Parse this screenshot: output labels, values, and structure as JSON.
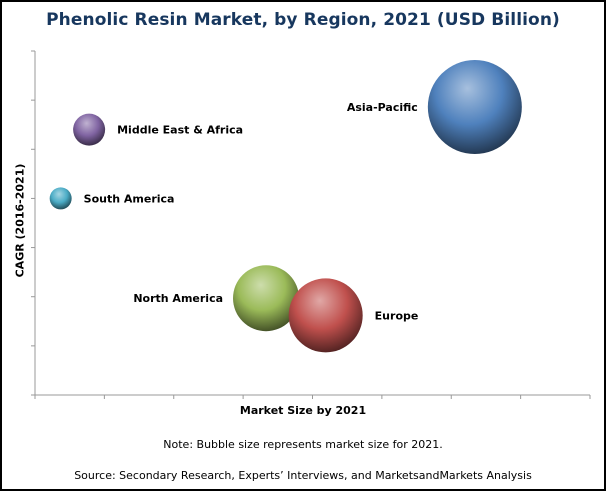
{
  "chart_data": {
    "type": "bubble",
    "title": "Phenolic Resin Market, by Region, 2021 (USD Billion)",
    "xlabel": "Market Size by 2021",
    "ylabel": "CAGR (2016-2021)",
    "xlim": [
      0,
      8
    ],
    "ylim": [
      0,
      7
    ],
    "x_ticks": 8,
    "y_ticks": 7,
    "tick_labels_shown": false,
    "grid": false,
    "legend": "none",
    "note": "Note: Bubble size represents market size for 2021.",
    "source": "Source: Secondary Research, Experts’ Interviews, and MarketsandMarkets Analysis",
    "points": [
      {
        "label": "Asia-Pacific",
        "x": 6.34,
        "y": 5.86,
        "size": 47,
        "color": "#4f81bd"
      },
      {
        "label": "Middle East & Africa",
        "x": 0.78,
        "y": 5.4,
        "size": 16,
        "color": "#8064a2"
      },
      {
        "label": "South America",
        "x": 0.37,
        "y": 4.0,
        "size": 11,
        "color": "#4bacc6"
      },
      {
        "label": "North America",
        "x": 3.33,
        "y": 1.97,
        "size": 33,
        "color": "#9bbb59"
      },
      {
        "label": "Europe",
        "x": 4.19,
        "y": 1.62,
        "size": 37,
        "color": "#c0504d"
      }
    ]
  }
}
